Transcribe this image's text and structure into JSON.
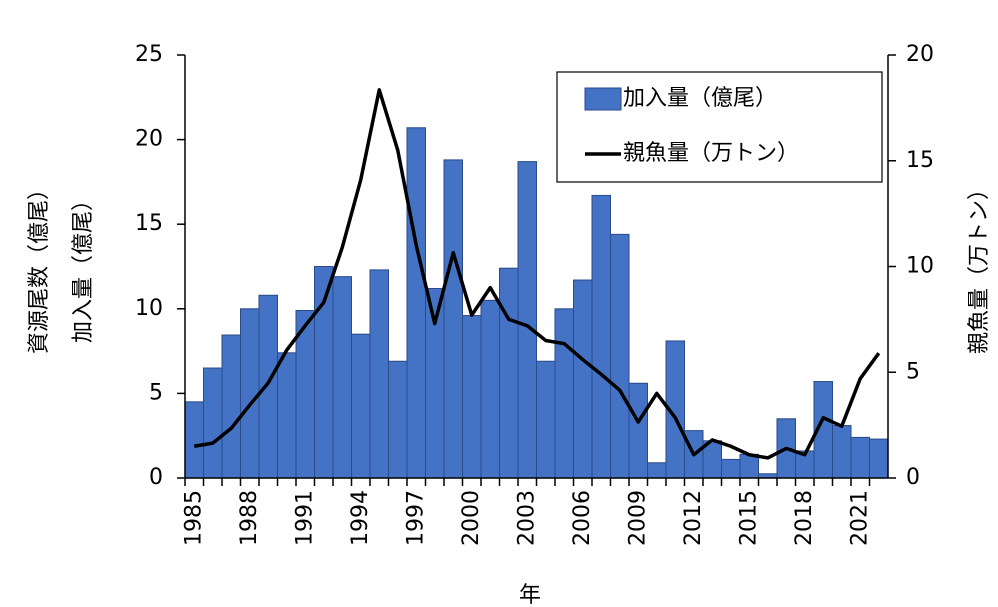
{
  "chart_data": {
    "type": "combo",
    "categories": [
      "1985",
      null,
      null,
      "1988",
      null,
      null,
      "1991",
      null,
      null,
      "1994",
      null,
      null,
      "1997",
      null,
      null,
      "2000",
      null,
      null,
      "2003",
      null,
      null,
      "2006",
      null,
      null,
      "2009",
      null,
      null,
      "2012",
      null,
      null,
      "2015",
      null,
      null,
      "2018",
      null,
      null,
      "2021",
      null
    ],
    "series": [
      {
        "name": "加入量（億尾）",
        "type": "bar",
        "color": "#4472c4",
        "values": [
          4.5,
          6.5,
          8.45,
          10.0,
          10.8,
          7.4,
          9.9,
          12.5,
          11.9,
          8.5,
          12.3,
          6.9,
          20.7,
          11.2,
          18.8,
          9.6,
          10.5,
          12.4,
          18.7,
          6.9,
          10.0,
          11.7,
          16.7,
          14.4,
          5.6,
          0.9,
          8.1,
          2.8,
          2.2,
          1.1,
          1.4,
          0.25,
          3.5,
          1.6,
          5.7,
          3.1,
          2.4,
          2.3
        ]
      },
      {
        "name": "親魚量（万トン）",
        "type": "line",
        "color": "#000000",
        "axis": "y2",
        "values": [
          1.5,
          1.65,
          2.35,
          3.45,
          4.5,
          6.05,
          7.2,
          8.3,
          10.9,
          14.1,
          18.35,
          15.5,
          11.0,
          7.3,
          10.65,
          7.7,
          9.0,
          7.5,
          7.2,
          6.5,
          6.35,
          5.6,
          4.9,
          4.15,
          2.65,
          4.0,
          2.85,
          1.1,
          1.8,
          1.5,
          1.1,
          0.95,
          1.4,
          1.1,
          2.85,
          2.45,
          4.7,
          5.9
        ]
      }
    ],
    "xlabel": "年",
    "ylabel": [
      "資源尾数（億尾）",
      "加入量（億尾）"
    ],
    "y2label": "親魚量（万トン）",
    "ylim": [
      0,
      25
    ],
    "yticks": [
      0,
      5,
      10,
      15,
      20,
      25
    ],
    "y2lim": [
      0,
      20
    ],
    "y2ticks": [
      0,
      5,
      10,
      15,
      20
    ],
    "legend": "top-right"
  }
}
